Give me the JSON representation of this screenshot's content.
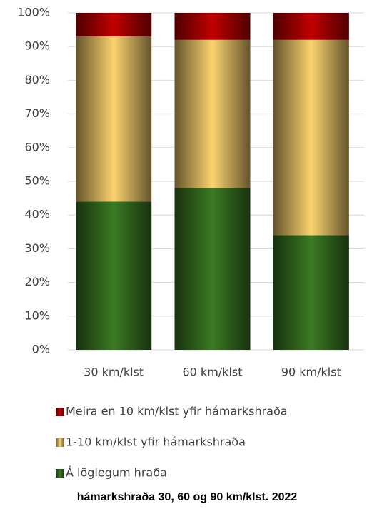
{
  "chart_data": {
    "type": "stacked_bar",
    "categories": [
      "30 km/klst",
      "60 km/klst",
      "90 km/klst"
    ],
    "series": [
      {
        "name": "Á löglegum hraða",
        "color": "#3b7a23",
        "values": [
          44,
          48,
          34
        ]
      },
      {
        "name": "1-10 km/klst yfir hámarkshraða",
        "color": "#fbd36e",
        "values": [
          49,
          44,
          58
        ]
      },
      {
        "name": "Meira en 10 km/klst yfir hámarkshraða",
        "color": "#c00000",
        "values": [
          7,
          8,
          8
        ]
      }
    ],
    "ylim": [
      0,
      100
    ],
    "yticks": [
      {
        "value": 0,
        "label": "0%"
      },
      {
        "value": 10,
        "label": "10%"
      },
      {
        "value": 20,
        "label": "20%"
      },
      {
        "value": 30,
        "label": "30%"
      },
      {
        "value": 40,
        "label": "40%"
      },
      {
        "value": 50,
        "label": "50%"
      },
      {
        "value": 60,
        "label": "60%"
      },
      {
        "value": 70,
        "label": "70%"
      },
      {
        "value": 80,
        "label": "80%"
      },
      {
        "value": 90,
        "label": "90%"
      },
      {
        "value": 100,
        "label": "100%"
      }
    ],
    "grid": true,
    "caption": "hámarkshraða 30, 60 og 90 km/klst. 2022"
  }
}
